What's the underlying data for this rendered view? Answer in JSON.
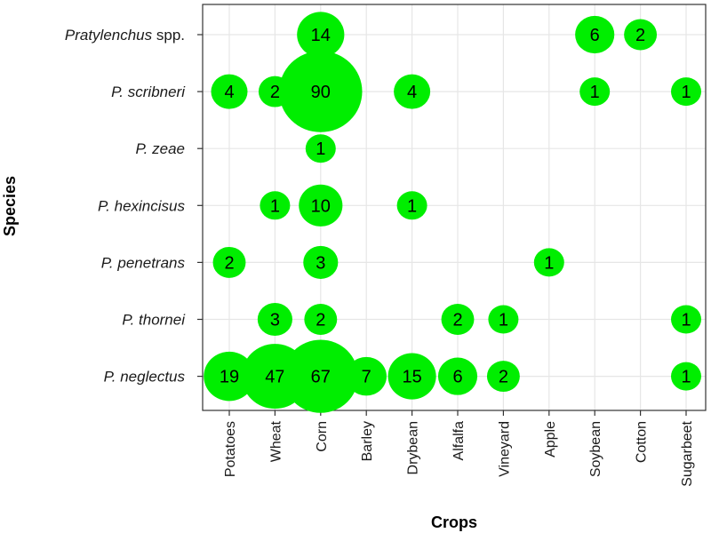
{
  "chart_data": {
    "type": "bubble",
    "title": "",
    "xlabel": "Crops",
    "ylabel": "Species",
    "grid": true,
    "bubble_color": "#00ee00",
    "crops": [
      "Potatoes",
      "Wheat",
      "Corn",
      "Barley",
      "Drybean",
      "Alfalfa",
      "Vineyard",
      "Apple",
      "Soybean",
      "Cotton",
      "Sugarbeet"
    ],
    "species": [
      {
        "name": "Pratylenchus",
        "suffix": " spp."
      },
      {
        "name": "P. scribneri",
        "suffix": ""
      },
      {
        "name": "P. zeae",
        "suffix": ""
      },
      {
        "name": "P. hexincisus",
        "suffix": ""
      },
      {
        "name": "P. penetrans",
        "suffix": ""
      },
      {
        "name": "P. thornei",
        "suffix": ""
      },
      {
        "name": "P. neglectus",
        "suffix": ""
      }
    ],
    "points": [
      {
        "species": "Pratylenchus",
        "crop": "Corn",
        "value": 14
      },
      {
        "species": "Pratylenchus",
        "crop": "Soybean",
        "value": 6
      },
      {
        "species": "Pratylenchus",
        "crop": "Cotton",
        "value": 2
      },
      {
        "species": "P. scribneri",
        "crop": "Potatoes",
        "value": 4
      },
      {
        "species": "P. scribneri",
        "crop": "Wheat",
        "value": 2
      },
      {
        "species": "P. scribneri",
        "crop": "Corn",
        "value": 90
      },
      {
        "species": "P. scribneri",
        "crop": "Drybean",
        "value": 4
      },
      {
        "species": "P. scribneri",
        "crop": "Soybean",
        "value": 1
      },
      {
        "species": "P. scribneri",
        "crop": "Sugarbeet",
        "value": 1
      },
      {
        "species": "P. zeae",
        "crop": "Corn",
        "value": 1
      },
      {
        "species": "P. hexincisus",
        "crop": "Wheat",
        "value": 1
      },
      {
        "species": "P. hexincisus",
        "crop": "Corn",
        "value": 10
      },
      {
        "species": "P. hexincisus",
        "crop": "Drybean",
        "value": 1
      },
      {
        "species": "P. penetrans",
        "crop": "Potatoes",
        "value": 2
      },
      {
        "species": "P. penetrans",
        "crop": "Corn",
        "value": 3
      },
      {
        "species": "P. penetrans",
        "crop": "Apple",
        "value": 1
      },
      {
        "species": "P. thornei",
        "crop": "Wheat",
        "value": 3
      },
      {
        "species": "P. thornei",
        "crop": "Corn",
        "value": 2
      },
      {
        "species": "P. thornei",
        "crop": "Alfalfa",
        "value": 2
      },
      {
        "species": "P. thornei",
        "crop": "Vineyard",
        "value": 1
      },
      {
        "species": "P. thornei",
        "crop": "Sugarbeet",
        "value": 1
      },
      {
        "species": "P. neglectus",
        "crop": "Potatoes",
        "value": 19
      },
      {
        "species": "P. neglectus",
        "crop": "Wheat",
        "value": 47
      },
      {
        "species": "P. neglectus",
        "crop": "Corn",
        "value": 67
      },
      {
        "species": "P. neglectus",
        "crop": "Barley",
        "value": 7
      },
      {
        "species": "P. neglectus",
        "crop": "Drybean",
        "value": 15
      },
      {
        "species": "P. neglectus",
        "crop": "Alfalfa",
        "value": 6
      },
      {
        "species": "P. neglectus",
        "crop": "Vineyard",
        "value": 2
      },
      {
        "species": "P. neglectus",
        "crop": "Sugarbeet",
        "value": 1
      }
    ]
  }
}
